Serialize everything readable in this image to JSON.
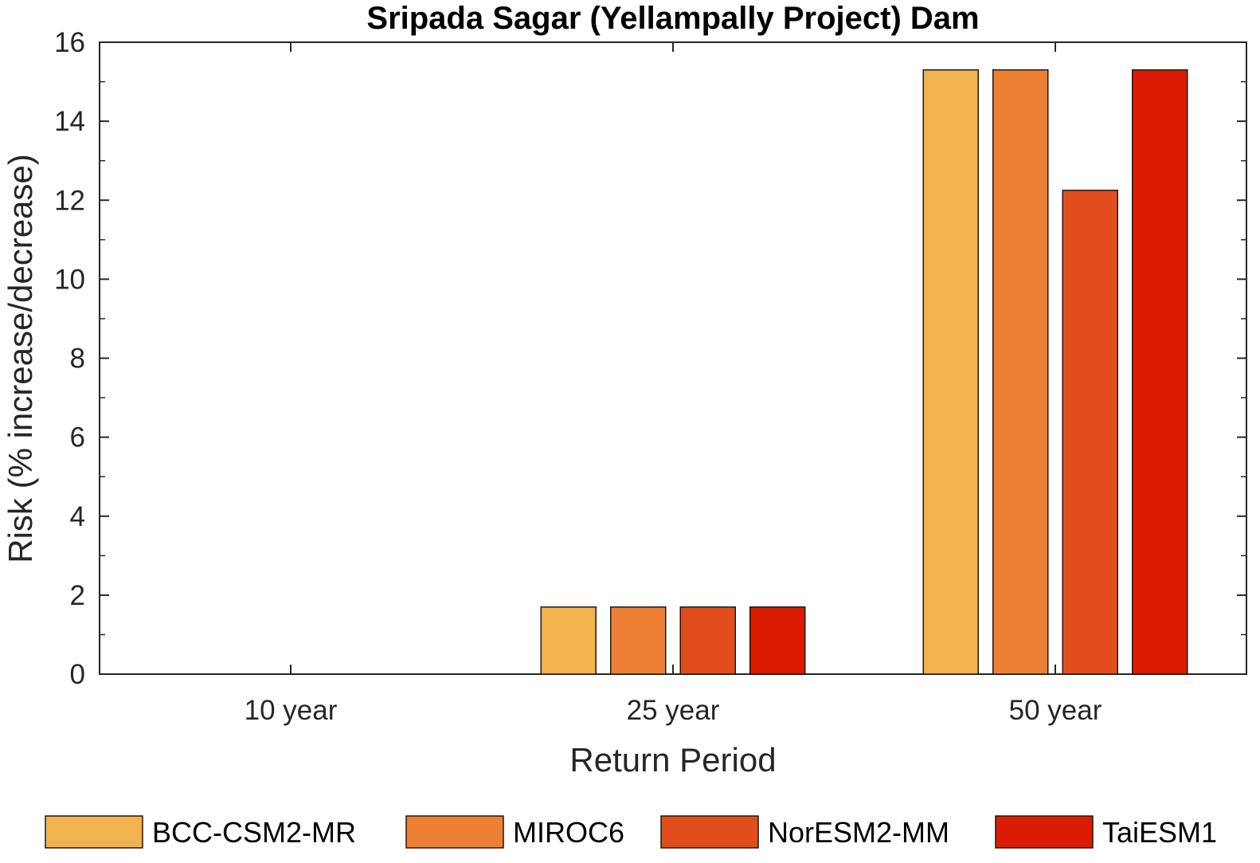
{
  "chart_data": {
    "type": "bar",
    "title": "Sripada Sagar (Yellampally Project) Dam",
    "xlabel": "Return Period",
    "ylabel": "Risk (% increase/decrease)",
    "categories": [
      "10 year",
      "25 year",
      "50 year"
    ],
    "ylim": [
      0,
      16
    ],
    "yticks": [
      0,
      2,
      4,
      6,
      8,
      10,
      12,
      14,
      16
    ],
    "grid": false,
    "legend_placement": "bottom",
    "series": [
      {
        "name": "BCC-CSM2-MR",
        "color": "#f2b24d",
        "values": [
          0,
          1.7,
          15.3
        ]
      },
      {
        "name": "MIROC6",
        "color": "#ee8033",
        "values": [
          0,
          1.7,
          15.3
        ]
      },
      {
        "name": "NorESM2-MM",
        "color": "#e24e1b",
        "values": [
          0,
          1.7,
          12.25
        ]
      },
      {
        "name": "TaiESM1",
        "color": "#dc1c00",
        "values": [
          0,
          1.7,
          15.3
        ]
      }
    ]
  }
}
